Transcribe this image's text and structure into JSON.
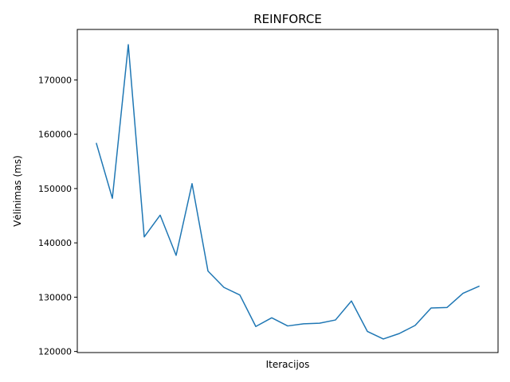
{
  "chart_data": {
    "type": "line",
    "title": "REINFORCE",
    "xlabel": "Iteracijos",
    "ylabel": "Vėlinimas (ms)",
    "x": [
      0,
      1,
      2,
      3,
      4,
      5,
      6,
      7,
      8,
      9,
      10,
      11,
      12,
      13,
      14,
      15,
      16,
      17,
      18,
      19,
      20,
      21,
      22,
      23,
      24
    ],
    "series": [
      {
        "name": "",
        "color": "#1f77b4",
        "values": [
          158300,
          148200,
          176500,
          141100,
          145100,
          137700,
          150900,
          134800,
          131800,
          130400,
          124600,
          126200,
          124700,
          125100,
          125200,
          125800,
          129300,
          123700,
          122300,
          123300,
          124800,
          128000,
          128100,
          130700,
          132000
        ]
      }
    ],
    "xlim": [
      -1.2,
      25.2
    ],
    "ylim": [
      119800,
      179300
    ],
    "yticks": [
      120000,
      130000,
      140000,
      150000,
      160000,
      170000
    ],
    "ytick_labels": [
      "120000",
      "130000",
      "140000",
      "150000",
      "160000",
      "170000"
    ],
    "xticks_visible": false,
    "grid": false,
    "legend": "none"
  }
}
